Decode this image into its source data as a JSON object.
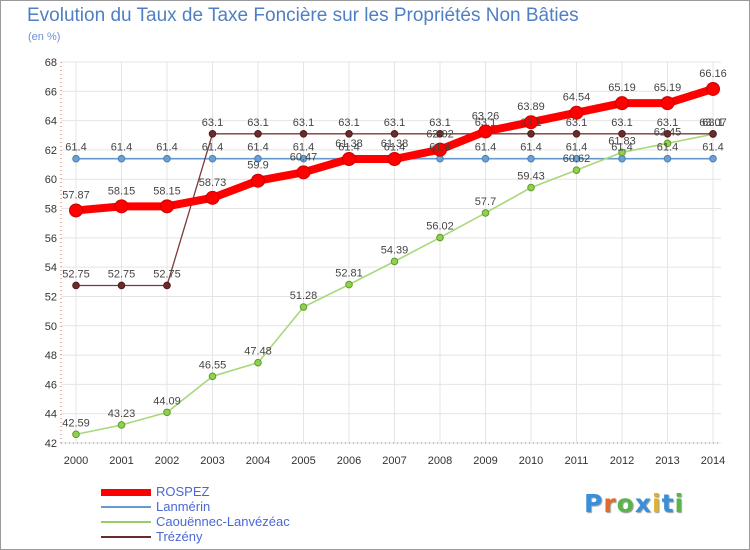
{
  "title": "Evolution du Taux de Taxe Foncière sur les Propriétés Non Bâties",
  "unit": "(en %)",
  "chart_data": {
    "type": "line",
    "title": "Evolution du Taux de Taxe Foncière sur les Propriétés Non Bâties",
    "ylabel": "(en %)",
    "xlabel": "",
    "ylim": [
      42,
      68
    ],
    "yticks": [
      42,
      44,
      46,
      48,
      50,
      52,
      54,
      56,
      58,
      60,
      62,
      64,
      66,
      68
    ],
    "grid": true,
    "x": [
      2000,
      2001,
      2002,
      2003,
      2004,
      2005,
      2006,
      2007,
      2008,
      2009,
      2010,
      2011,
      2012,
      2013,
      2014
    ],
    "series": [
      {
        "name": "ROSPEZ",
        "color": "#ff0000",
        "labels": [
          "57.87",
          "58.15",
          "58.15",
          "58.73",
          "59.9",
          "60.47",
          "61.38",
          "61.38",
          "62.02",
          "63.26",
          "63.89",
          "64.54",
          "65.19",
          "65.19",
          "66.16"
        ],
        "values": [
          57.87,
          58.15,
          58.15,
          58.73,
          59.9,
          60.47,
          61.38,
          61.38,
          62.02,
          63.26,
          63.89,
          64.54,
          65.19,
          65.19,
          66.16
        ]
      },
      {
        "name": "Lanmérin",
        "color": "#6699cc",
        "labels": [
          "61.4",
          "61.4",
          "61.4",
          "61.4",
          "61.4",
          "61.4",
          "61.4",
          "61.4",
          "61.4",
          "61.4",
          "61.4",
          "61.4",
          "61.4",
          "61.4",
          "61.4"
        ],
        "values": [
          61.4,
          61.4,
          61.4,
          61.4,
          61.4,
          61.4,
          61.4,
          61.4,
          61.4,
          61.4,
          61.4,
          61.4,
          61.4,
          61.4,
          61.4
        ]
      },
      {
        "name": "Caouënnec-Lanvézéac",
        "color": "#99cc66",
        "labels": [
          "42.59",
          "43.23",
          "44.09",
          "46.55",
          "47.48",
          "51.28",
          "52.81",
          "54.39",
          "56.02",
          "57.7",
          "59.43",
          "60.62",
          "61.83",
          "62.45",
          "63.07"
        ],
        "values": [
          42.59,
          43.23,
          44.09,
          46.55,
          47.48,
          51.28,
          52.81,
          54.39,
          56.02,
          57.7,
          59.43,
          60.62,
          61.83,
          62.45,
          63.07
        ]
      },
      {
        "name": "Trézény",
        "color": "#6b2b2b",
        "labels": [
          "52.75",
          "52.75",
          "52.75",
          "63.1",
          "63.1",
          "63.1",
          "63.1",
          "63.1",
          "63.1",
          "63.1",
          "63.1",
          "63.1",
          "63.1",
          "63.1",
          "63.1"
        ],
        "values": [
          52.75,
          52.75,
          52.75,
          63.1,
          63.1,
          63.1,
          63.1,
          63.1,
          63.1,
          63.1,
          63.1,
          63.1,
          63.1,
          63.1,
          63.1
        ]
      }
    ]
  },
  "logo": {
    "text": "Proxiti",
    "colors": [
      "#3a8fd9",
      "#e46a2c",
      "#59b44a",
      "#3a8fd9",
      "#e0b12c",
      "#3a8fd9",
      "#59b44a"
    ]
  }
}
